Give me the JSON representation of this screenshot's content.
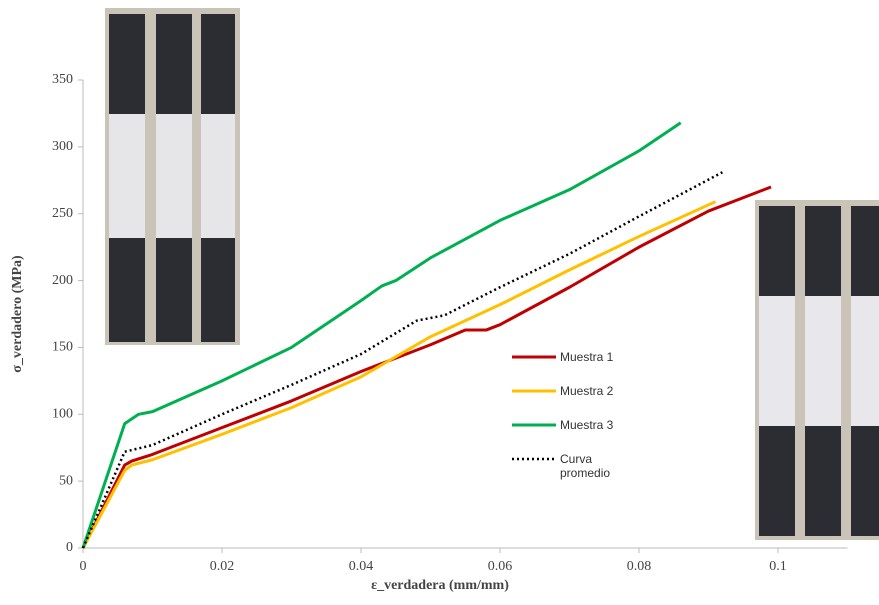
{
  "chart_data": {
    "type": "line",
    "x_label": "ε_verdadera (mm/mm)",
    "y_label": "σ_verdadero (MPa)",
    "xlim": [
      0,
      0.11
    ],
    "ylim": [
      0,
      350
    ],
    "xticks": [
      0,
      0.02,
      0.04,
      0.06,
      0.08,
      0.1
    ],
    "yticks": [
      0,
      50,
      100,
      150,
      200,
      250,
      300,
      350
    ],
    "series": [
      {
        "name": "Muestra 1",
        "color": "#c00000",
        "style": "solid",
        "x": [
          0,
          0.006,
          0.007,
          0.01,
          0.02,
          0.03,
          0.04,
          0.05,
          0.055,
          0.058,
          0.06,
          0.07,
          0.08,
          0.09,
          0.099
        ],
        "values": [
          0,
          62,
          65,
          70,
          90,
          110,
          132,
          152,
          163,
          163,
          167,
          195,
          225,
          252,
          270
        ]
      },
      {
        "name": "Muestra 2",
        "color": "#ffc000",
        "style": "solid",
        "x": [
          0,
          0.006,
          0.007,
          0.01,
          0.02,
          0.03,
          0.04,
          0.05,
          0.06,
          0.07,
          0.08,
          0.091
        ],
        "values": [
          0,
          58,
          62,
          66,
          85,
          105,
          128,
          158,
          182,
          208,
          233,
          259
        ]
      },
      {
        "name": "Muestra 3",
        "color": "#00b050",
        "style": "solid",
        "x": [
          0,
          0.006,
          0.008,
          0.01,
          0.02,
          0.03,
          0.04,
          0.043,
          0.045,
          0.05,
          0.06,
          0.07,
          0.08,
          0.086
        ],
        "values": [
          0,
          93,
          100,
          102,
          125,
          150,
          185,
          196,
          200,
          217,
          245,
          268,
          297,
          318
        ]
      },
      {
        "name": "Curva promedio",
        "color": "#000000",
        "style": "dotted",
        "x": [
          0,
          0.006,
          0.01,
          0.02,
          0.03,
          0.04,
          0.048,
          0.052,
          0.06,
          0.07,
          0.08,
          0.092
        ],
        "values": [
          0,
          72,
          77,
          100,
          122,
          145,
          170,
          174,
          195,
          220,
          248,
          281
        ]
      }
    ]
  }
}
